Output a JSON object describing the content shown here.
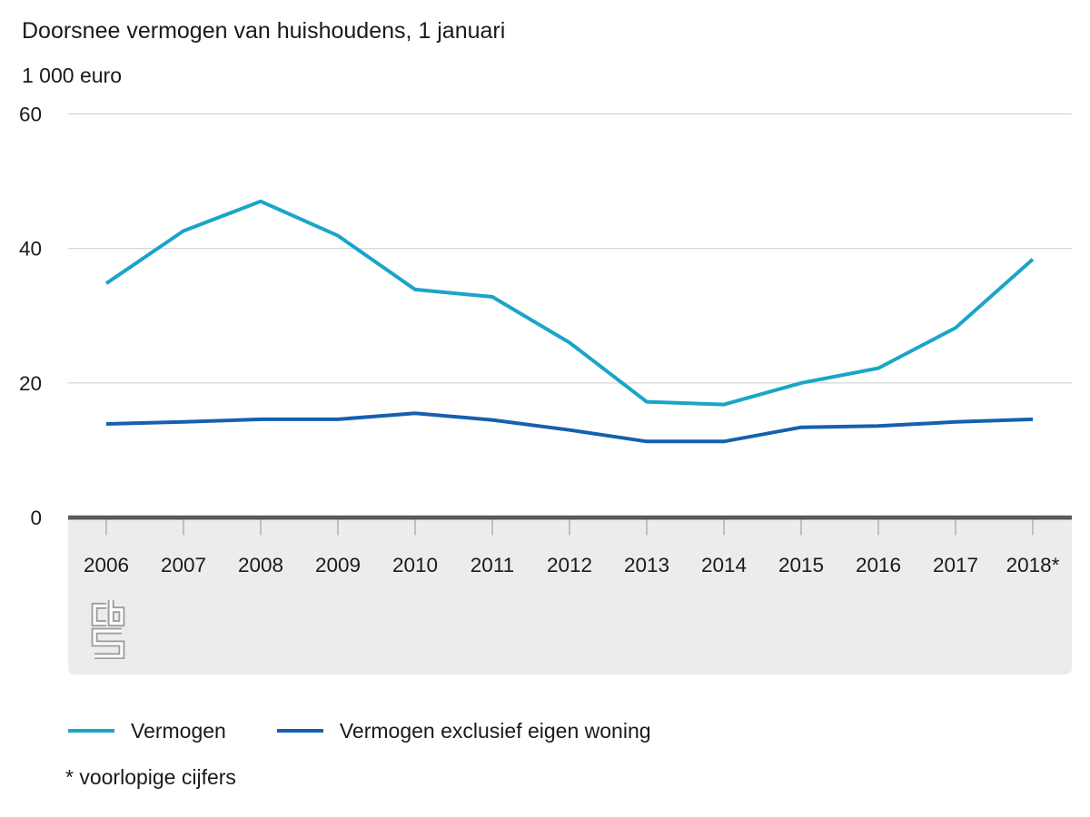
{
  "chart_data": {
    "type": "line",
    "title": "Doorsnee vermogen van huishoudens, 1 januari",
    "unit": "1 000 euro",
    "categories": [
      "2006",
      "2007",
      "2008",
      "2009",
      "2010",
      "2011",
      "2012",
      "2013",
      "2014",
      "2015",
      "2016",
      "2017",
      "2018*"
    ],
    "series": [
      {
        "name": "Vermogen",
        "color": "#1aa5c8",
        "values": [
          34.8,
          42.6,
          47.0,
          41.9,
          33.9,
          32.8,
          26.0,
          17.2,
          16.8,
          20.0,
          22.2,
          28.2,
          38.4
        ]
      },
      {
        "name": "Vermogen exclusief eigen woning",
        "color": "#1560af",
        "values": [
          13.9,
          14.2,
          14.6,
          14.6,
          15.5,
          14.5,
          13.0,
          11.3,
          11.3,
          13.4,
          13.6,
          14.2,
          14.6
        ]
      }
    ],
    "ylim": [
      0,
      60
    ],
    "yticks": [
      0,
      20,
      40,
      60
    ],
    "grid": true,
    "legend_position": "bottom"
  },
  "footnote": "* voorlopige cijfers",
  "logo": {
    "name": "cbs-logo",
    "color": "#9d9d9d"
  },
  "colors": {
    "gridline": "#cccccc",
    "axis_line": "#58595b",
    "axis_band": "#ececec",
    "text": "#1a1a1a"
  }
}
